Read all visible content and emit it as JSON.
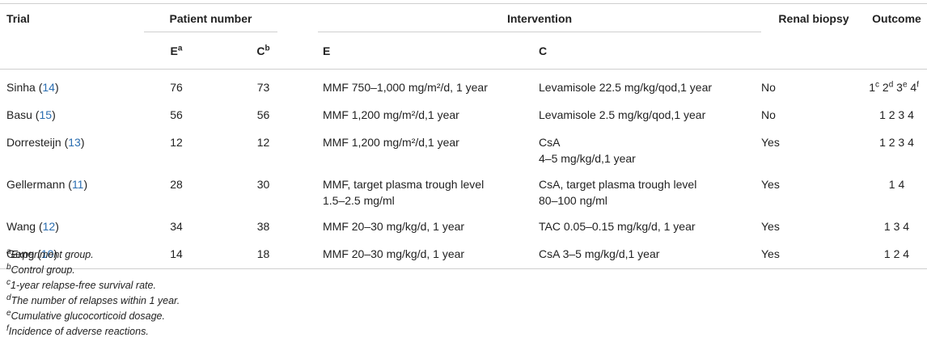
{
  "headers": {
    "trial": "Trial",
    "patient_number": "Patient number",
    "intervention": "Intervention",
    "renal_biopsy": "Renal biopsy",
    "outcome": "Outcome",
    "e": "E",
    "e_sup": "a",
    "c": "C",
    "c_sup": "b",
    "int_e": "E",
    "int_c": "C"
  },
  "rows": [
    {
      "name": "Sinha",
      "ref": "14",
      "e": "76",
      "c": "73",
      "int_e": "MMF 750–1,000 mg/m²/d, 1 year",
      "int_c": "Levamisole 22.5 mg/kg/qod,1 year",
      "biopsy": "No",
      "outcome": [
        {
          "n": "1",
          "s": "c"
        },
        {
          "n": "2",
          "s": "d"
        },
        {
          "n": "3",
          "s": "e"
        },
        {
          "n": "4",
          "s": "f"
        }
      ]
    },
    {
      "name": "Basu",
      "ref": "15",
      "e": "56",
      "c": "56",
      "int_e": "MMF 1,200 mg/m²/d,1 year",
      "int_c": "Levamisole 2.5 mg/kg/qod,1 year",
      "biopsy": "No",
      "outcome_text": "1 2 3 4"
    },
    {
      "name": "Dorresteijn",
      "ref": "13",
      "e": "12",
      "c": "12",
      "int_e": "MMF 1,200 mg/m²/d,1 year",
      "int_c": "CsA",
      "int_c2": "4–5 mg/kg/d,1 year",
      "biopsy": "Yes",
      "outcome_text": "1 2 3 4"
    },
    {
      "name": "Gellermann",
      "ref": "11",
      "e": "28",
      "c": "30",
      "int_e": "MMF, target plasma trough level",
      "int_e2": "1.5–2.5 mg/ml",
      "int_c": "CsA, target plasma trough level",
      "int_c2": "80–100 ng/ml",
      "biopsy": "Yes",
      "outcome_text": "1 4"
    },
    {
      "name": "Wang",
      "ref": "12",
      "e": "34",
      "c": "38",
      "int_e": "MMF 20–30 mg/kg/d, 1 year",
      "int_c": "TAC 0.05–0.15 mg/kg/d, 1 year",
      "biopsy": "Yes",
      "outcome_text": "1 3 4"
    },
    {
      "name": "Geng",
      "ref": "10",
      "e": "14",
      "c": "18",
      "int_e": "MMF 20–30 mg/kg/d, 1 year",
      "int_c": "CsA 3–5 mg/kg/d,1 year",
      "biopsy": "Yes",
      "outcome_text": "1 2 4"
    }
  ],
  "footnotes": [
    {
      "mark": "a",
      "text": "Experiment group."
    },
    {
      "mark": "b",
      "text": "Control group."
    },
    {
      "mark": "c",
      "text": "1-year relapse-free survival rate."
    },
    {
      "mark": "d",
      "text": "The number of relapses within 1 year."
    },
    {
      "mark": "e",
      "text": "Cumulative glucocorticoid dosage."
    },
    {
      "mark": "f",
      "text": "Incidence of adverse reactions."
    }
  ]
}
